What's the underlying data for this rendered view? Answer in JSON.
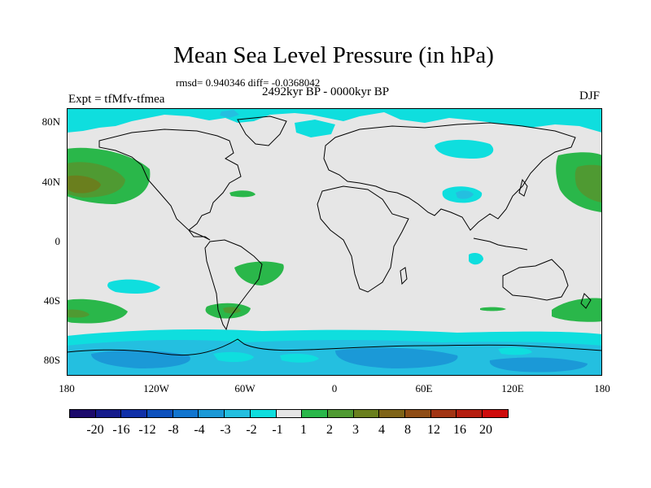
{
  "title": "Mean Sea Level Pressure (in hPa)",
  "stats": "rmsd= 0.940346 diff= -0.0368042",
  "period": "2492kyr BP - 0000kyr BP",
  "experiment": "Expt = tfMfv-tfmea",
  "season": "DJF",
  "axes": {
    "lat_ticks": [
      "80N",
      "40N",
      "0",
      "40S",
      "80S"
    ],
    "lon_ticks": [
      "180",
      "120W",
      "60W",
      "0",
      "60E",
      "120E",
      "180"
    ]
  },
  "colorbar": {
    "colors": [
      "#1c0a6c",
      "#151b8c",
      "#1030a8",
      "#0d51bd",
      "#1175cf",
      "#1b99d7",
      "#24bfe0",
      "#0fdede",
      "#e6e6e6",
      "#2ab74a",
      "#4f9a32",
      "#6a7f1e",
      "#7f6418",
      "#8f4d16",
      "#a23514",
      "#b51e10",
      "#cf0c0c"
    ],
    "labels": [
      "-20",
      "-16",
      "-12",
      "-8",
      "-4",
      "-3",
      "-2",
      "-1",
      "1",
      "2",
      "3",
      "4",
      "8",
      "12",
      "16",
      "20"
    ]
  },
  "field_colors": {
    "neutral": "#e6e6e6",
    "minus1": "#0fdede",
    "minus2": "#24bfe0",
    "minus3": "#1b99d7",
    "plus2": "#2ab74a",
    "plus3": "#4f9a32",
    "plus4": "#6a7f1e"
  }
}
